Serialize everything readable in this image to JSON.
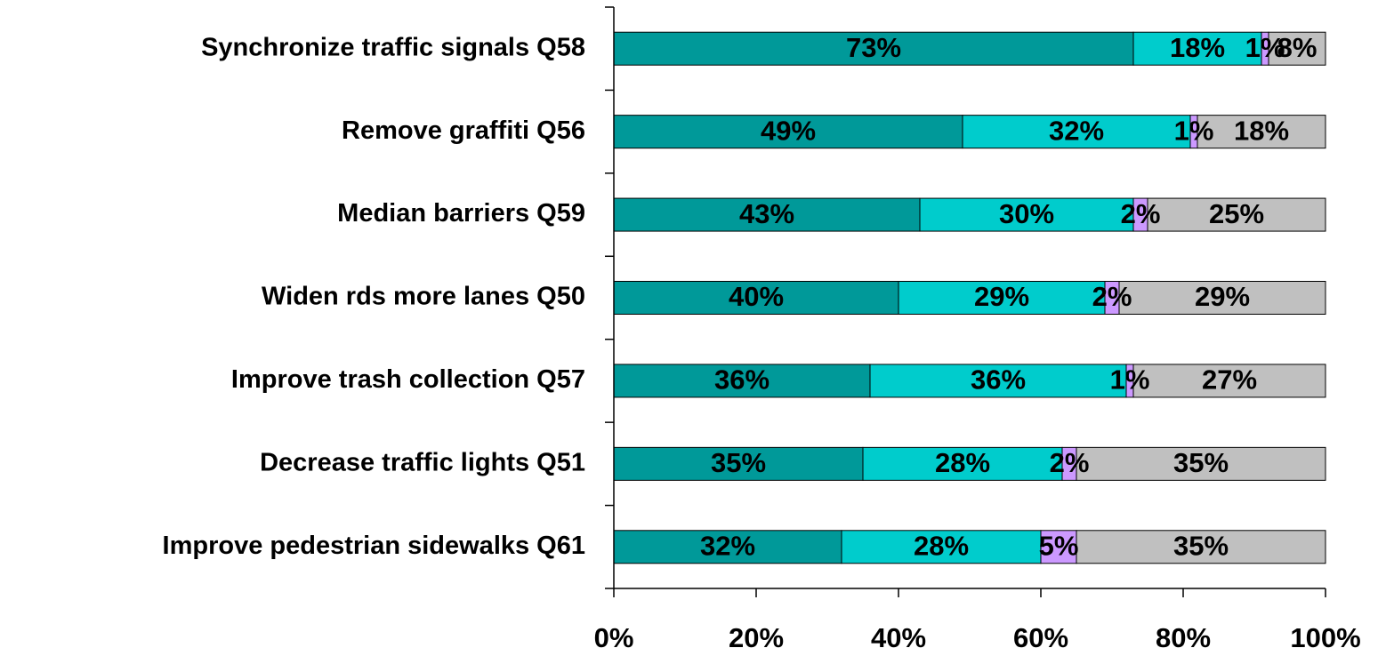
{
  "chart_data": {
    "type": "stacked-bar-horizontal",
    "categories": [
      "Synchronize traffic signals Q58",
      "Remove graffiti Q56",
      "Median barriers Q59",
      "Widen rds more lanes Q50",
      "Improve trash collection Q57",
      "Decrease traffic lights Q51",
      "Improve pedestrian sidewalks Q61"
    ],
    "series": [
      {
        "color": "#009999",
        "values": [
          73,
          49,
          43,
          40,
          36,
          35,
          32
        ],
        "value_labels": [
          "73%",
          "49%",
          "43%",
          "40%",
          "36%",
          "35%",
          "32%"
        ]
      },
      {
        "color": "#00cccc",
        "values": [
          18,
          32,
          30,
          29,
          36,
          28,
          28
        ],
        "value_labels": [
          "18%",
          "32%",
          "30%",
          "29%",
          "36%",
          "28%",
          "28%"
        ]
      },
      {
        "color": "#cc99ff",
        "values": [
          1,
          1,
          2,
          2,
          1,
          2,
          5
        ],
        "value_labels": [
          "1%",
          "1%",
          "2%",
          "2%",
          "1%",
          "2%",
          "5%"
        ]
      },
      {
        "color": "#c0c0c0",
        "values": [
          8,
          18,
          25,
          29,
          27,
          35,
          35
        ],
        "value_labels": [
          "8%",
          "18%",
          "25%",
          "29%",
          "27%",
          "35%",
          "35%"
        ]
      }
    ],
    "xlim": [
      0,
      100
    ],
    "xticks": [
      {
        "value": 0,
        "label": "0%"
      },
      {
        "value": 20,
        "label": "20%"
      },
      {
        "value": 40,
        "label": "40%"
      },
      {
        "value": 60,
        "label": "60%"
      },
      {
        "value": 80,
        "label": "80%"
      },
      {
        "value": 100,
        "label": "100%"
      }
    ]
  }
}
